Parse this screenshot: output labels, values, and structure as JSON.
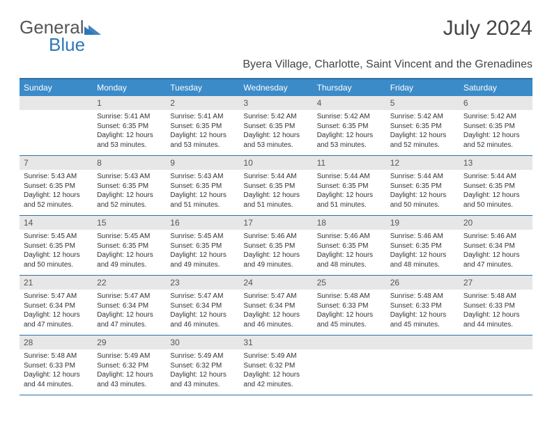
{
  "brand": {
    "part1": "General",
    "part2": "Blue"
  },
  "title": "July 2024",
  "subtitle": "Byera Village, Charlotte, Saint Vincent and the Grenadines",
  "colors": {
    "header_bg": "#3b8bc9",
    "header_border": "#2e6fa3",
    "daynum_bg": "#e7e7e7",
    "brand_blue": "#2e77b8"
  },
  "daynames": [
    "Sunday",
    "Monday",
    "Tuesday",
    "Wednesday",
    "Thursday",
    "Friday",
    "Saturday"
  ],
  "weeks": [
    [
      {
        "n": "",
        "sr": "",
        "ss": "",
        "dl": ""
      },
      {
        "n": "1",
        "sr": "Sunrise: 5:41 AM",
        "ss": "Sunset: 6:35 PM",
        "dl": "Daylight: 12 hours and 53 minutes."
      },
      {
        "n": "2",
        "sr": "Sunrise: 5:41 AM",
        "ss": "Sunset: 6:35 PM",
        "dl": "Daylight: 12 hours and 53 minutes."
      },
      {
        "n": "3",
        "sr": "Sunrise: 5:42 AM",
        "ss": "Sunset: 6:35 PM",
        "dl": "Daylight: 12 hours and 53 minutes."
      },
      {
        "n": "4",
        "sr": "Sunrise: 5:42 AM",
        "ss": "Sunset: 6:35 PM",
        "dl": "Daylight: 12 hours and 53 minutes."
      },
      {
        "n": "5",
        "sr": "Sunrise: 5:42 AM",
        "ss": "Sunset: 6:35 PM",
        "dl": "Daylight: 12 hours and 52 minutes."
      },
      {
        "n": "6",
        "sr": "Sunrise: 5:42 AM",
        "ss": "Sunset: 6:35 PM",
        "dl": "Daylight: 12 hours and 52 minutes."
      }
    ],
    [
      {
        "n": "7",
        "sr": "Sunrise: 5:43 AM",
        "ss": "Sunset: 6:35 PM",
        "dl": "Daylight: 12 hours and 52 minutes."
      },
      {
        "n": "8",
        "sr": "Sunrise: 5:43 AM",
        "ss": "Sunset: 6:35 PM",
        "dl": "Daylight: 12 hours and 52 minutes."
      },
      {
        "n": "9",
        "sr": "Sunrise: 5:43 AM",
        "ss": "Sunset: 6:35 PM",
        "dl": "Daylight: 12 hours and 51 minutes."
      },
      {
        "n": "10",
        "sr": "Sunrise: 5:44 AM",
        "ss": "Sunset: 6:35 PM",
        "dl": "Daylight: 12 hours and 51 minutes."
      },
      {
        "n": "11",
        "sr": "Sunrise: 5:44 AM",
        "ss": "Sunset: 6:35 PM",
        "dl": "Daylight: 12 hours and 51 minutes."
      },
      {
        "n": "12",
        "sr": "Sunrise: 5:44 AM",
        "ss": "Sunset: 6:35 PM",
        "dl": "Daylight: 12 hours and 50 minutes."
      },
      {
        "n": "13",
        "sr": "Sunrise: 5:44 AM",
        "ss": "Sunset: 6:35 PM",
        "dl": "Daylight: 12 hours and 50 minutes."
      }
    ],
    [
      {
        "n": "14",
        "sr": "Sunrise: 5:45 AM",
        "ss": "Sunset: 6:35 PM",
        "dl": "Daylight: 12 hours and 50 minutes."
      },
      {
        "n": "15",
        "sr": "Sunrise: 5:45 AM",
        "ss": "Sunset: 6:35 PM",
        "dl": "Daylight: 12 hours and 49 minutes."
      },
      {
        "n": "16",
        "sr": "Sunrise: 5:45 AM",
        "ss": "Sunset: 6:35 PM",
        "dl": "Daylight: 12 hours and 49 minutes."
      },
      {
        "n": "17",
        "sr": "Sunrise: 5:46 AM",
        "ss": "Sunset: 6:35 PM",
        "dl": "Daylight: 12 hours and 49 minutes."
      },
      {
        "n": "18",
        "sr": "Sunrise: 5:46 AM",
        "ss": "Sunset: 6:35 PM",
        "dl": "Daylight: 12 hours and 48 minutes."
      },
      {
        "n": "19",
        "sr": "Sunrise: 5:46 AM",
        "ss": "Sunset: 6:35 PM",
        "dl": "Daylight: 12 hours and 48 minutes."
      },
      {
        "n": "20",
        "sr": "Sunrise: 5:46 AM",
        "ss": "Sunset: 6:34 PM",
        "dl": "Daylight: 12 hours and 47 minutes."
      }
    ],
    [
      {
        "n": "21",
        "sr": "Sunrise: 5:47 AM",
        "ss": "Sunset: 6:34 PM",
        "dl": "Daylight: 12 hours and 47 minutes."
      },
      {
        "n": "22",
        "sr": "Sunrise: 5:47 AM",
        "ss": "Sunset: 6:34 PM",
        "dl": "Daylight: 12 hours and 47 minutes."
      },
      {
        "n": "23",
        "sr": "Sunrise: 5:47 AM",
        "ss": "Sunset: 6:34 PM",
        "dl": "Daylight: 12 hours and 46 minutes."
      },
      {
        "n": "24",
        "sr": "Sunrise: 5:47 AM",
        "ss": "Sunset: 6:34 PM",
        "dl": "Daylight: 12 hours and 46 minutes."
      },
      {
        "n": "25",
        "sr": "Sunrise: 5:48 AM",
        "ss": "Sunset: 6:33 PM",
        "dl": "Daylight: 12 hours and 45 minutes."
      },
      {
        "n": "26",
        "sr": "Sunrise: 5:48 AM",
        "ss": "Sunset: 6:33 PM",
        "dl": "Daylight: 12 hours and 45 minutes."
      },
      {
        "n": "27",
        "sr": "Sunrise: 5:48 AM",
        "ss": "Sunset: 6:33 PM",
        "dl": "Daylight: 12 hours and 44 minutes."
      }
    ],
    [
      {
        "n": "28",
        "sr": "Sunrise: 5:48 AM",
        "ss": "Sunset: 6:33 PM",
        "dl": "Daylight: 12 hours and 44 minutes."
      },
      {
        "n": "29",
        "sr": "Sunrise: 5:49 AM",
        "ss": "Sunset: 6:32 PM",
        "dl": "Daylight: 12 hours and 43 minutes."
      },
      {
        "n": "30",
        "sr": "Sunrise: 5:49 AM",
        "ss": "Sunset: 6:32 PM",
        "dl": "Daylight: 12 hours and 43 minutes."
      },
      {
        "n": "31",
        "sr": "Sunrise: 5:49 AM",
        "ss": "Sunset: 6:32 PM",
        "dl": "Daylight: 12 hours and 42 minutes."
      },
      {
        "n": "",
        "sr": "",
        "ss": "",
        "dl": ""
      },
      {
        "n": "",
        "sr": "",
        "ss": "",
        "dl": ""
      },
      {
        "n": "",
        "sr": "",
        "ss": "",
        "dl": ""
      }
    ]
  ]
}
